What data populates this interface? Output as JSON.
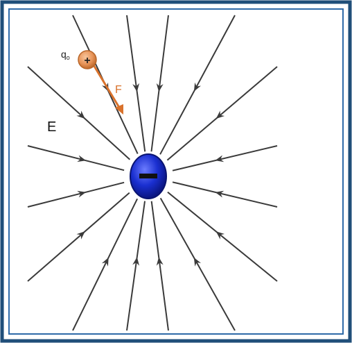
{
  "diagram": {
    "test_charge_label": "q",
    "test_charge_subscript": "o",
    "test_charge_sign": "+",
    "force_label": "F",
    "field_label": "E",
    "central_charge_sign": "−",
    "colors": {
      "border_outer": "#1f4e79",
      "border_inner": "#2e6aa8",
      "field_line": "#3a3a3a",
      "central_charge": "#1a2fd0",
      "test_charge": "#e8955a",
      "force_arrow": "#d9722c"
    },
    "icons": [
      "negative-charge-icon",
      "positive-charge-icon"
    ]
  }
}
